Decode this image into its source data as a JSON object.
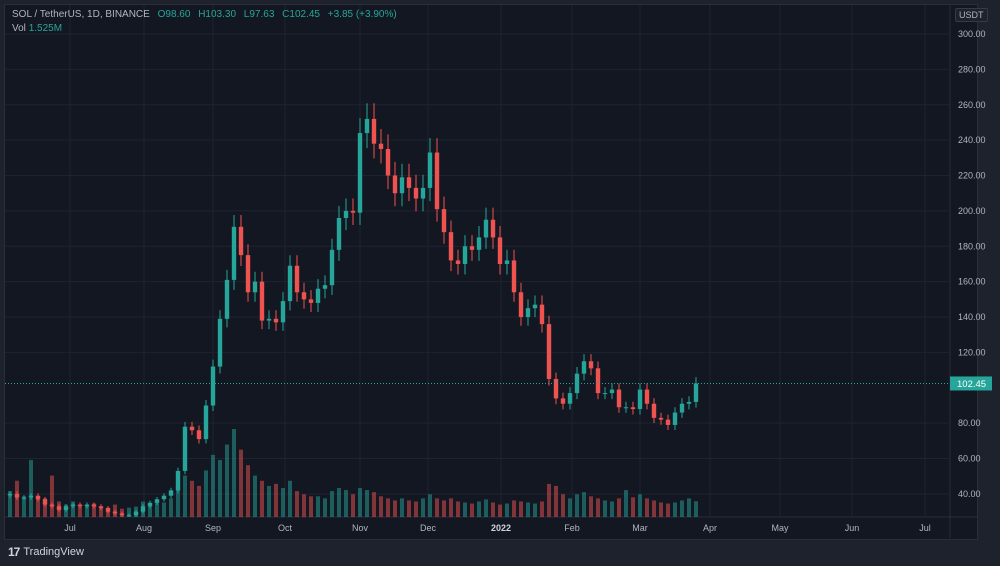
{
  "header": {
    "symbol": "SOL / TetherUS, 1D, BINANCE",
    "open": "O98.60",
    "high": "H103.30",
    "low": "L97.63",
    "close": "C102.45",
    "change": "+3.85 (+3.90%)",
    "volume_label": "Vol",
    "volume_value": "1.525M"
  },
  "currency": "USDT",
  "footer": {
    "brand": "TradingView"
  },
  "colors": {
    "up": "#26a69a",
    "down": "#ef5350",
    "background": "#131722",
    "grid": "#1f2330"
  },
  "chart_data": {
    "type": "candlestick",
    "title": "SOL / TetherUS, 1D, BINANCE",
    "ylim": [
      20,
      310
    ],
    "y_ticks": [
      "300.00",
      "280.00",
      "260.00",
      "240.00",
      "220.00",
      "200.00",
      "180.00",
      "160.00",
      "140.00",
      "120.00",
      "80.00",
      "60.00",
      "40.00"
    ],
    "x_ticks": [
      "Jul",
      "Aug",
      "Sep",
      "Oct",
      "Nov",
      "Dec",
      "2022",
      "Feb",
      "Mar",
      "Apr",
      "May",
      "Jun",
      "Jul"
    ],
    "date_range": [
      "2021-06-04",
      "2022-03-25"
    ],
    "last_price": "102.45",
    "close": [
      40,
      38,
      38,
      39,
      37,
      34,
      33,
      31,
      33,
      34,
      33,
      34,
      33,
      32,
      30,
      29,
      28,
      28,
      30,
      33,
      35,
      37,
      39,
      42,
      53,
      78,
      76,
      71,
      90,
      112,
      139,
      161,
      191,
      175,
      154,
      160,
      138,
      139,
      137,
      149,
      169,
      154,
      150,
      148,
      156,
      158,
      178,
      196,
      200,
      199,
      244,
      252,
      238,
      235,
      220,
      210,
      219,
      213,
      207,
      213,
      233,
      201,
      188,
      172,
      170,
      180,
      178,
      185,
      195,
      185,
      170,
      172,
      154,
      140,
      145,
      147,
      136,
      105,
      94,
      91,
      97,
      108,
      115,
      111,
      97,
      97,
      99,
      89,
      89,
      88,
      99,
      91,
      83,
      82,
      79,
      86,
      91,
      92,
      102.45
    ],
    "volume_m": [
      2.5,
      3.5,
      2.0,
      5.5,
      2.0,
      1.8,
      4.0,
      1.5,
      1.2,
      1.5,
      1.0,
      1.2,
      1.3,
      1.0,
      0.9,
      1.2,
      0.8,
      0.9,
      1.0,
      1.5,
      1.2,
      1.6,
      1.4,
      1.8,
      2.8,
      4.0,
      3.5,
      3.0,
      4.5,
      6.0,
      5.5,
      7.0,
      8.5,
      6.5,
      5.0,
      4.0,
      3.5,
      3.0,
      3.2,
      2.8,
      3.5,
      2.5,
      2.2,
      2.0,
      2.0,
      1.8,
      2.5,
      2.8,
      2.6,
      2.2,
      2.8,
      2.6,
      2.4,
      2.0,
      1.8,
      1.6,
      1.8,
      1.6,
      1.5,
      1.8,
      2.2,
      1.8,
      1.6,
      1.8,
      1.5,
      1.4,
      1.3,
      1.5,
      1.7,
      1.4,
      1.2,
      1.3,
      1.6,
      1.5,
      1.4,
      1.3,
      1.5,
      3.2,
      3.0,
      2.2,
      1.8,
      2.2,
      2.4,
      2.0,
      1.8,
      1.6,
      1.5,
      1.8,
      2.6,
      1.9,
      2.2,
      1.8,
      1.6,
      1.4,
      1.3,
      1.4,
      1.6,
      1.8,
      1.525
    ]
  }
}
